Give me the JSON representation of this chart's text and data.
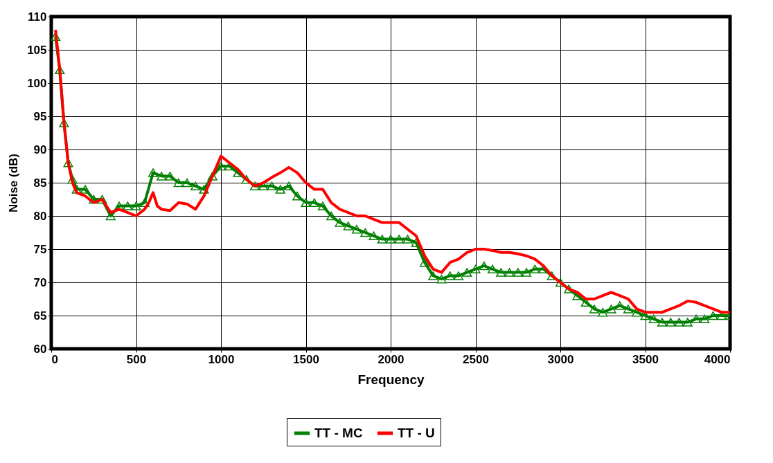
{
  "chart_data": {
    "type": "line",
    "xlabel": "Frequency",
    "ylabel": "Noise (dB)",
    "xlim": [
      0,
      4000
    ],
    "xticks": [
      0,
      500,
      1000,
      1500,
      2000,
      2500,
      3000,
      3500,
      4000
    ],
    "ylim": [
      60,
      110
    ],
    "yticks": [
      60,
      65,
      70,
      75,
      80,
      85,
      90,
      95,
      100,
      105,
      110
    ],
    "grid": true,
    "legend": "bottom",
    "series": [
      {
        "name": "TT - MC",
        "color": "#008000",
        "marker": "triangle",
        "x": [
          25,
          50,
          75,
          100,
          125,
          150,
          200,
          250,
          300,
          350,
          400,
          450,
          500,
          550,
          600,
          650,
          700,
          750,
          800,
          850,
          900,
          950,
          1000,
          1050,
          1100,
          1150,
          1200,
          1250,
          1300,
          1350,
          1400,
          1450,
          1500,
          1550,
          1600,
          1650,
          1700,
          1750,
          1800,
          1850,
          1900,
          1950,
          2000,
          2050,
          2100,
          2150,
          2200,
          2250,
          2300,
          2350,
          2400,
          2450,
          2500,
          2550,
          2600,
          2650,
          2700,
          2750,
          2800,
          2850,
          2900,
          2950,
          3000,
          3050,
          3100,
          3150,
          3200,
          3250,
          3300,
          3350,
          3400,
          3450,
          3500,
          3550,
          3600,
          3650,
          3700,
          3750,
          3800,
          3850,
          3900,
          3950,
          4000
        ],
        "values": [
          107,
          102,
          94,
          88,
          85.5,
          84,
          84,
          82.5,
          82.5,
          80,
          81.5,
          81.5,
          81.5,
          82,
          86.5,
          86,
          86,
          85,
          85,
          84.5,
          84,
          86,
          87.5,
          87.5,
          86.5,
          85.5,
          84.5,
          84.5,
          84.5,
          84,
          84.5,
          83,
          82,
          82,
          81.5,
          80,
          79,
          78.5,
          78,
          77.5,
          77,
          76.5,
          76.5,
          76.5,
          76.5,
          76,
          73,
          71,
          70.5,
          71,
          71,
          71.5,
          72,
          72.5,
          72,
          71.5,
          71.5,
          71.5,
          71.5,
          72,
          72,
          71,
          70,
          69,
          68,
          67,
          66,
          65.5,
          66,
          66.5,
          66,
          65.5,
          65,
          64.5,
          64,
          64,
          64,
          64,
          64.5,
          64.5,
          65,
          65,
          65
        ]
      },
      {
        "name": "TT - U",
        "color": "#ff0000",
        "marker": "none",
        "x": [
          25,
          50,
          75,
          100,
          125,
          150,
          200,
          250,
          300,
          350,
          400,
          450,
          500,
          550,
          575,
          600,
          625,
          650,
          700,
          750,
          800,
          850,
          900,
          950,
          1000,
          1050,
          1100,
          1150,
          1200,
          1250,
          1300,
          1350,
          1400,
          1450,
          1500,
          1550,
          1600,
          1650,
          1700,
          1750,
          1800,
          1850,
          1900,
          1950,
          2000,
          2050,
          2100,
          2150,
          2200,
          2250,
          2300,
          2350,
          2400,
          2450,
          2500,
          2550,
          2600,
          2650,
          2700,
          2750,
          2800,
          2850,
          2900,
          2950,
          3000,
          3050,
          3100,
          3150,
          3200,
          3250,
          3300,
          3350,
          3400,
          3450,
          3500,
          3550,
          3600,
          3650,
          3700,
          3750,
          3800,
          3850,
          3900,
          3950,
          4000
        ],
        "values": [
          108,
          102,
          94,
          88,
          85,
          83.5,
          83,
          82,
          82.5,
          80.5,
          81,
          80.5,
          80,
          81,
          82,
          83.5,
          81.5,
          81,
          80.8,
          82,
          81.8,
          81,
          83,
          86,
          89,
          88,
          87,
          85.5,
          84.5,
          85,
          85.8,
          86.5,
          87.3,
          86.5,
          85,
          84,
          84,
          82,
          81,
          80.5,
          80,
          80,
          79.5,
          79,
          79,
          79,
          78,
          77,
          74,
          72,
          71.5,
          73,
          73.5,
          74.5,
          75,
          75,
          74.8,
          74.5,
          74.5,
          74.3,
          74,
          73.5,
          72.5,
          71,
          70,
          69,
          68.5,
          67.5,
          67.5,
          68,
          68.5,
          68,
          67.5,
          66,
          65.5,
          65.5,
          65.5,
          66,
          66.5,
          67.2,
          67,
          66.5,
          66,
          65.5,
          65.5
        ]
      }
    ]
  }
}
